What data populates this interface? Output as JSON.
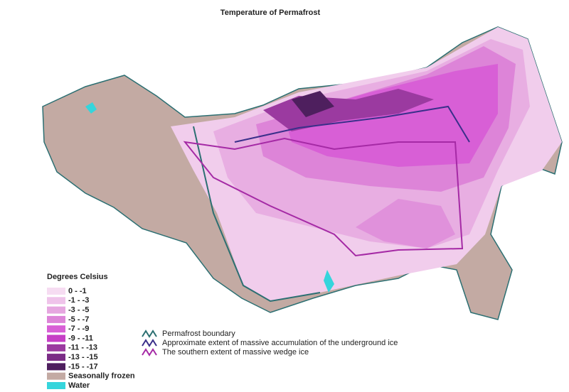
{
  "title": "Temperature of Permafrost",
  "legend": {
    "title": "Degrees Celsius",
    "items": [
      {
        "label": "0 - -1",
        "color": "#f6dcf2"
      },
      {
        "label": "-1 - -3",
        "color": "#efc3ea"
      },
      {
        "label": "-3 - -5",
        "color": "#e6a6e0"
      },
      {
        "label": "-5 - -7",
        "color": "#dd84d8"
      },
      {
        "label": "-7 - -9",
        "color": "#d85fd6"
      },
      {
        "label": "-9 - -11",
        "color": "#c63fc6"
      },
      {
        "label": "-11 - -13",
        "color": "#9b3aa0"
      },
      {
        "label": "-13 - -15",
        "color": "#7b2c86"
      },
      {
        "label": "-15 - -17",
        "color": "#4e1f5e"
      },
      {
        "label": "Seasonally frozen",
        "color": "#c3aaa3"
      },
      {
        "label": "Water",
        "color": "#35d5dc"
      }
    ]
  },
  "lines": [
    {
      "label": "Permafrost boundary",
      "color": "#2c6f72"
    },
    {
      "label": "Approximate extent of massive accumulation of the underground ice",
      "color": "#3a2f8a"
    },
    {
      "label": "The southern extent of massive wedge ice",
      "color": "#a52aa5"
    }
  ]
}
